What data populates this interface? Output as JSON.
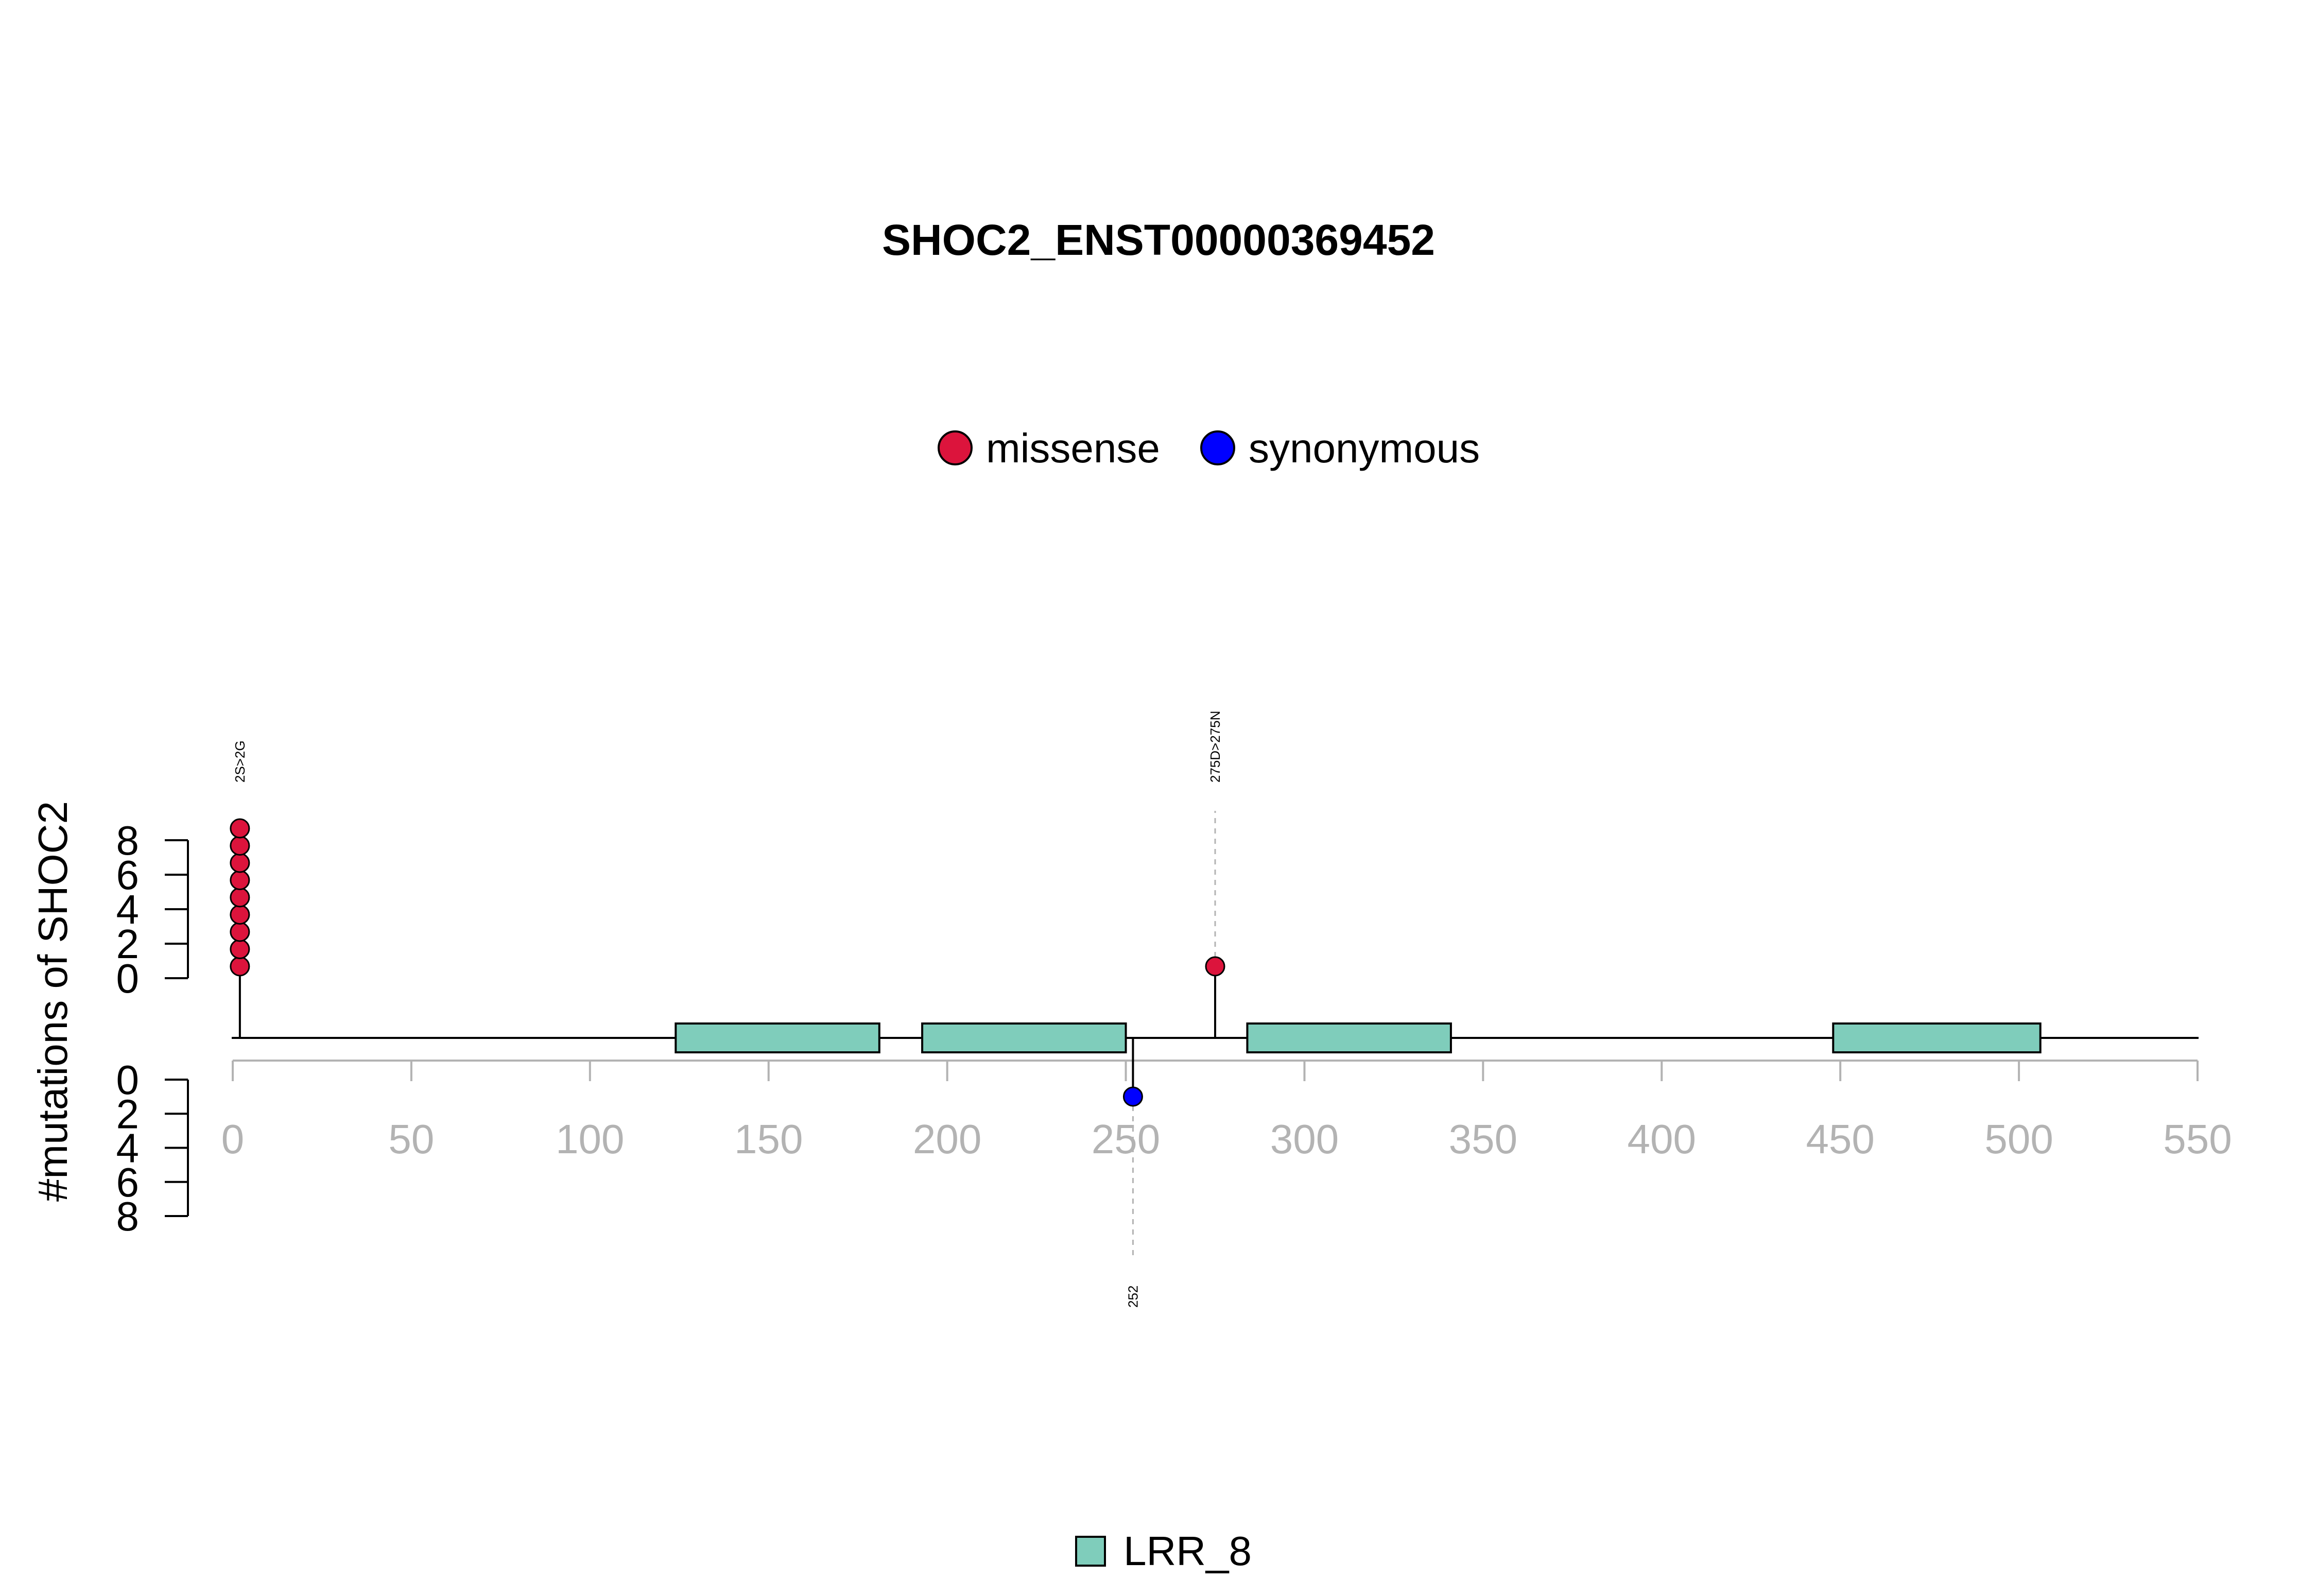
{
  "chart_data": {
    "type": "lollipop",
    "title": "SHOC2_ENST00000369452",
    "ylabel": "#mutations of SHOC2",
    "protein_length": 582,
    "xlim": [
      0,
      550
    ],
    "x_ticks": [
      0,
      50,
      100,
      150,
      200,
      250,
      300,
      350,
      400,
      450,
      500,
      550
    ],
    "y_ticks_upper": [
      0,
      2,
      4,
      6,
      8
    ],
    "y_ticks_lower": [
      0,
      2,
      4,
      6,
      8
    ],
    "mutation_legend": [
      {
        "name": "missense",
        "color": "#DC143C"
      },
      {
        "name": "synonymous",
        "color": "#0000FF"
      }
    ],
    "domain_legend": [
      {
        "name": "LRR_8",
        "color": "#7FCDBB"
      }
    ],
    "domains": [
      {
        "name": "LRR_8",
        "start": 124,
        "end": 181
      },
      {
        "name": "LRR_8",
        "start": 193,
        "end": 250
      },
      {
        "name": "LRR_8",
        "start": 284,
        "end": 341
      },
      {
        "name": "LRR_8",
        "start": 448,
        "end": 506
      }
    ],
    "mutations": [
      {
        "position": 2,
        "count": 9,
        "type": "missense",
        "side": "top",
        "label": "2S>2G"
      },
      {
        "position": 275,
        "count": 1,
        "type": "missense",
        "side": "top",
        "label": "275D>275N"
      },
      {
        "position": 252,
        "count": 1,
        "type": "synonymous",
        "side": "bottom",
        "label": "252"
      }
    ]
  }
}
